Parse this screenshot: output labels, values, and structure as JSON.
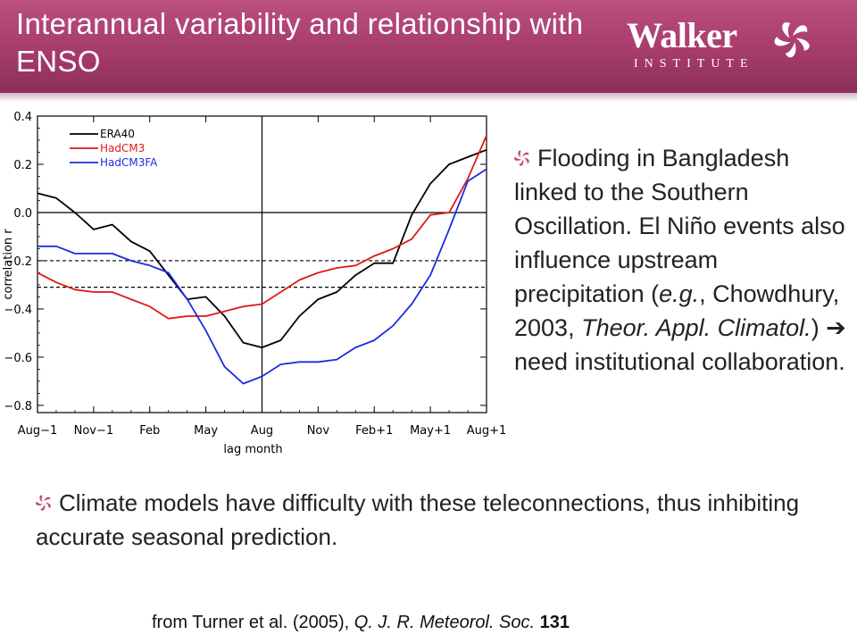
{
  "header": {
    "title": "Interannual variability and relationship with ENSO",
    "colors": {
      "band": "#a63c6c"
    }
  },
  "logo": {
    "word": "Walker",
    "sub": "INSTITUTE",
    "mark_icon": "pinwheel-icon"
  },
  "chart_data": {
    "type": "line",
    "xlabel": "lag month",
    "ylabel": "correlation r",
    "x_ticks": [
      "Aug−1",
      "Nov−1",
      "Feb",
      "May",
      "Aug",
      "Nov",
      "Feb+1",
      "May+1",
      "Aug+1"
    ],
    "y_ticks": [
      "0.4",
      "0.2",
      "0.0",
      "−0.2",
      "−0.4",
      "−0.6",
      "−0.8"
    ],
    "xlim": [
      0,
      24
    ],
    "ylim": [
      -0.83,
      0.4
    ],
    "zero_line": 0.0,
    "vertical_line_x": 12,
    "significance_levels": [
      -0.2,
      -0.31
    ],
    "legend_placement": "top-left",
    "x": [
      0,
      1,
      2,
      3,
      4,
      5,
      6,
      7,
      8,
      9,
      10,
      11,
      12,
      13,
      14,
      15,
      16,
      17,
      18,
      19,
      20,
      21,
      22,
      23,
      24
    ],
    "series": [
      {
        "name": "ERA40",
        "color": "#000000",
        "values": [
          0.08,
          0.06,
          0.0,
          -0.07,
          -0.05,
          -0.12,
          -0.16,
          -0.26,
          -0.36,
          -0.35,
          -0.43,
          -0.54,
          -0.56,
          -0.53,
          -0.43,
          -0.36,
          -0.33,
          -0.26,
          -0.21,
          -0.21,
          -0.01,
          0.12,
          0.2,
          0.23,
          0.26
        ]
      },
      {
        "name": "HadCM3",
        "color": "#e01818",
        "values": [
          -0.25,
          -0.29,
          -0.32,
          -0.33,
          -0.33,
          -0.36,
          -0.39,
          -0.44,
          -0.43,
          -0.43,
          -0.41,
          -0.39,
          -0.38,
          -0.33,
          -0.28,
          -0.25,
          -0.23,
          -0.22,
          -0.18,
          -0.15,
          -0.11,
          -0.01,
          0.0,
          0.14,
          0.32
        ]
      },
      {
        "name": "HadCM3FA",
        "color": "#1a2ee0",
        "values": [
          -0.14,
          -0.14,
          -0.17,
          -0.17,
          -0.17,
          -0.2,
          -0.22,
          -0.25,
          -0.36,
          -0.49,
          -0.64,
          -0.71,
          -0.68,
          -0.63,
          -0.62,
          -0.62,
          -0.61,
          -0.56,
          -0.53,
          -0.47,
          -0.38,
          -0.26,
          -0.07,
          0.13,
          0.18
        ]
      }
    ]
  },
  "text": {
    "right_paragraph": "Flooding in Bangladesh linked to the Southern Oscillation.  El Niño events also influence upstream precipitation (e.g., Chowdhury, 2003, Theor. Appl. Climatol.) ➔ need institutional collaboration.",
    "bottom_paragraph": "Climate models have difficulty with these teleconnections, thus inhibiting accurate seasonal prediction.",
    "citation": "from Turner et al. (2005), Q. J. R. Meteorol. Soc. 131"
  },
  "bullet_icon": "pinwheel-bullet-icon"
}
